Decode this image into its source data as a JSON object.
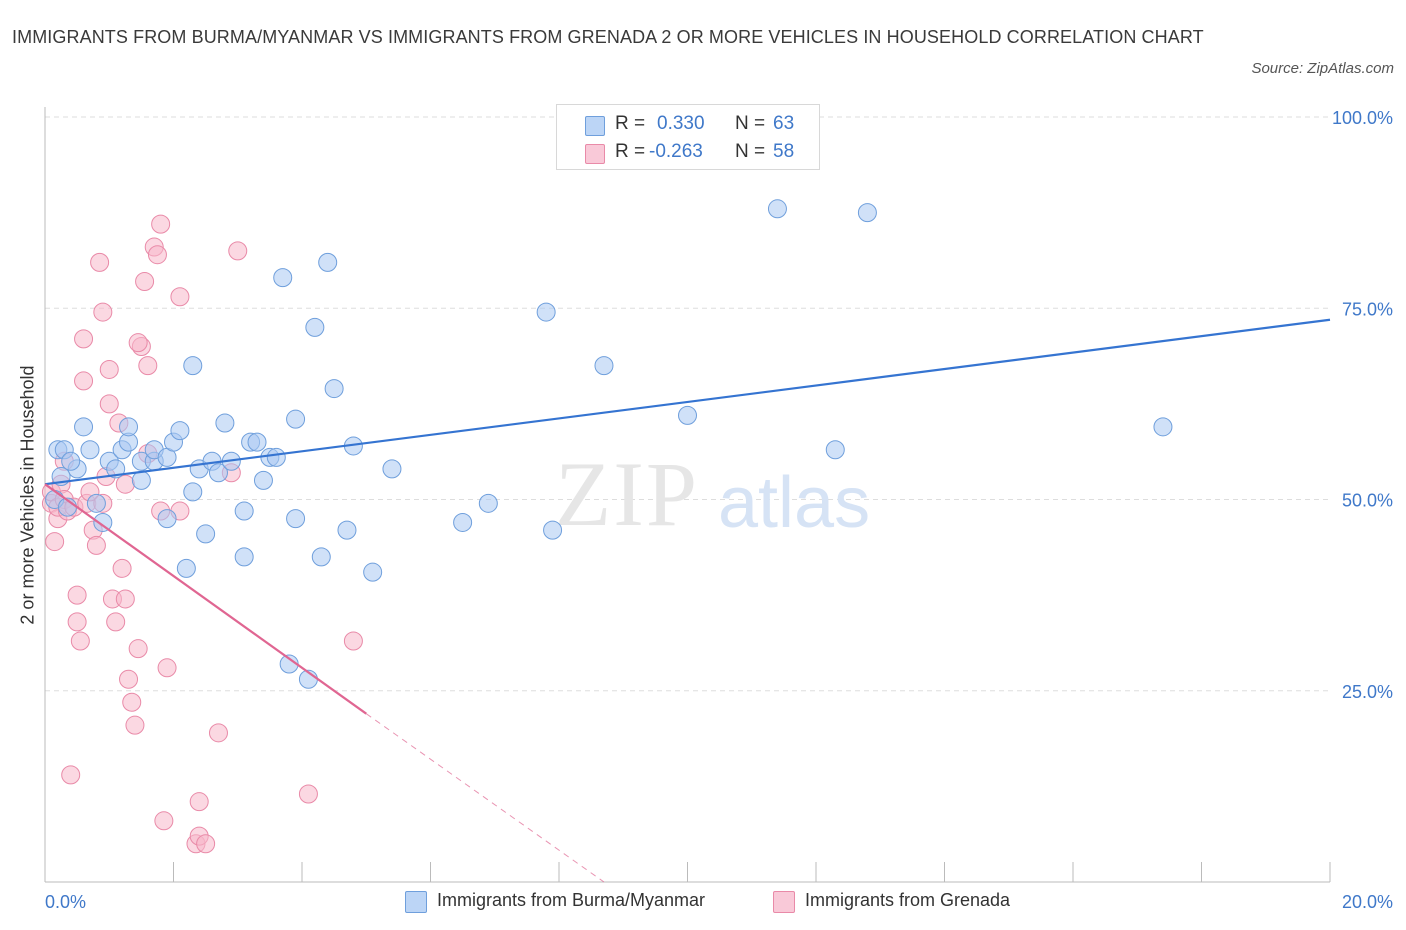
{
  "title": "IMMIGRANTS FROM BURMA/MYANMAR VS IMMIGRANTS FROM GRENADA 2 OR MORE VEHICLES IN HOUSEHOLD CORRELATION CHART",
  "source": "Source: ZipAtlas.com",
  "watermark": {
    "zip": "ZIP",
    "atlas": "atlas"
  },
  "legend": {
    "rows": [
      {
        "r_label": "R =",
        "r_value": "0.330",
        "n_label": "N =",
        "n_value": "63",
        "color": "#a9c8f3"
      },
      {
        "r_label": "R =",
        "r_value": "-0.263",
        "n_label": "N =",
        "n_value": "58",
        "color": "#f7b8cb"
      }
    ]
  },
  "colors": {
    "blue_fill": "#a9c8f3",
    "blue_stroke": "#6f9fdc",
    "blue_line": "#3574d1",
    "pink_fill": "#f7b8cb",
    "pink_stroke": "#e98aa8",
    "pink_line": "#e06692",
    "axis_text": "#3f78c9",
    "grid": "#dddddd"
  },
  "chart_data": {
    "type": "scatter",
    "title": "IMMIGRANTS FROM BURMA/MYANMAR VS IMMIGRANTS FROM GRENADA 2 OR MORE VEHICLES IN HOUSEHOLD CORRELATION CHART",
    "xlabel": "",
    "ylabel": "2 or more Vehicles in Household",
    "xlim": [
      0,
      20
    ],
    "ylim": [
      0,
      100
    ],
    "x_tick_labels": [
      "0.0%",
      "20.0%"
    ],
    "y_tick_labels": [
      "100.0%",
      "75.0%",
      "50.0%",
      "25.0%"
    ],
    "y_ticks": [
      100,
      75,
      50,
      25
    ],
    "grid": true,
    "legend_position": "bottom",
    "series": [
      {
        "name": "Immigrants from Burma/Myanmar",
        "color": "blue",
        "R": 0.33,
        "N": 63,
        "trend": {
          "x": [
            0,
            20
          ],
          "y": [
            52,
            73.5
          ],
          "dashed_from": null
        },
        "points": [
          [
            0.2,
            56.5
          ],
          [
            0.3,
            56.5
          ],
          [
            0.5,
            54
          ],
          [
            0.4,
            55
          ],
          [
            0.6,
            59.5
          ],
          [
            0.7,
            56.5
          ],
          [
            0.8,
            49.5
          ],
          [
            0.9,
            47
          ],
          [
            1.0,
            55
          ],
          [
            1.1,
            54
          ],
          [
            1.2,
            56.5
          ],
          [
            1.3,
            57.5
          ],
          [
            1.3,
            59.5
          ],
          [
            1.5,
            52.5
          ],
          [
            1.5,
            55
          ],
          [
            1.7,
            55
          ],
          [
            1.7,
            56.5
          ],
          [
            1.9,
            55.5
          ],
          [
            1.9,
            47.5
          ],
          [
            2.0,
            57.5
          ],
          [
            2.1,
            59
          ],
          [
            2.2,
            41
          ],
          [
            2.3,
            67.5
          ],
          [
            2.3,
            51
          ],
          [
            2.4,
            54
          ],
          [
            2.5,
            45.5
          ],
          [
            2.6,
            55
          ],
          [
            2.7,
            53.5
          ],
          [
            2.8,
            60
          ],
          [
            2.9,
            55
          ],
          [
            3.1,
            48.5
          ],
          [
            3.1,
            42.5
          ],
          [
            3.2,
            57.5
          ],
          [
            3.3,
            57.5
          ],
          [
            3.4,
            52.5
          ],
          [
            3.5,
            55.5
          ],
          [
            3.6,
            55.5
          ],
          [
            3.7,
            79
          ],
          [
            3.8,
            28.5
          ],
          [
            3.9,
            47.5
          ],
          [
            3.9,
            60.5
          ],
          [
            4.1,
            26.5
          ],
          [
            4.2,
            72.5
          ],
          [
            4.3,
            42.5
          ],
          [
            4.4,
            81
          ],
          [
            4.5,
            64.5
          ],
          [
            4.7,
            46
          ],
          [
            4.8,
            57
          ],
          [
            5.1,
            40.5
          ],
          [
            5.4,
            54
          ],
          [
            6.5,
            47
          ],
          [
            6.9,
            49.5
          ],
          [
            7.8,
            74.5
          ],
          [
            7.9,
            46
          ],
          [
            8.7,
            67.5
          ],
          [
            10.0,
            61
          ],
          [
            11.4,
            88
          ],
          [
            12.3,
            56.5
          ],
          [
            12.8,
            87.5
          ],
          [
            17.4,
            59.5
          ],
          [
            0.15,
            50
          ],
          [
            0.25,
            53
          ],
          [
            0.35,
            49
          ]
        ]
      },
      {
        "name": "Immigrants from Grenada",
        "color": "pink",
        "R": -0.263,
        "N": 58,
        "trend": {
          "x": [
            0,
            5.0
          ],
          "y": [
            52,
            22
          ],
          "dashed_to": [
            8.7,
            0
          ]
        },
        "points": [
          [
            0.1,
            49.5
          ],
          [
            0.1,
            51
          ],
          [
            0.15,
            44.5
          ],
          [
            0.2,
            47.5
          ],
          [
            0.2,
            49
          ],
          [
            0.25,
            52
          ],
          [
            0.3,
            55
          ],
          [
            0.3,
            50
          ],
          [
            0.35,
            48.5
          ],
          [
            0.4,
            14
          ],
          [
            0.45,
            49
          ],
          [
            0.5,
            37.5
          ],
          [
            0.5,
            34
          ],
          [
            0.55,
            31.5
          ],
          [
            0.6,
            65.5
          ],
          [
            0.6,
            71
          ],
          [
            0.65,
            49.5
          ],
          [
            0.7,
            51
          ],
          [
            0.75,
            46
          ],
          [
            0.8,
            44
          ],
          [
            0.85,
            81
          ],
          [
            0.9,
            74.5
          ],
          [
            0.9,
            49.5
          ],
          [
            0.95,
            53
          ],
          [
            1.0,
            62.5
          ],
          [
            1.0,
            67
          ],
          [
            1.05,
            37
          ],
          [
            1.1,
            34
          ],
          [
            1.15,
            60
          ],
          [
            1.2,
            41
          ],
          [
            1.25,
            52
          ],
          [
            1.3,
            26.5
          ],
          [
            1.35,
            23.5
          ],
          [
            1.4,
            20.5
          ],
          [
            1.45,
            30.5
          ],
          [
            1.5,
            70
          ],
          [
            1.55,
            78.5
          ],
          [
            1.6,
            67.5
          ],
          [
            1.6,
            56
          ],
          [
            1.7,
            83
          ],
          [
            1.75,
            82
          ],
          [
            1.8,
            86
          ],
          [
            1.8,
            48.5
          ],
          [
            1.85,
            8
          ],
          [
            1.9,
            28
          ],
          [
            2.1,
            76.5
          ],
          [
            2.1,
            48.5
          ],
          [
            2.35,
            5
          ],
          [
            2.4,
            6
          ],
          [
            2.4,
            10.5
          ],
          [
            2.5,
            5
          ],
          [
            2.7,
            19.5
          ],
          [
            2.9,
            53.5
          ],
          [
            3.0,
            82.5
          ],
          [
            4.1,
            11.5
          ],
          [
            4.8,
            31.5
          ],
          [
            1.25,
            37
          ],
          [
            1.45,
            70.5
          ]
        ]
      }
    ]
  },
  "bottom_legend": [
    "Immigrants from Burma/Myanmar",
    "Immigrants from Grenada"
  ]
}
